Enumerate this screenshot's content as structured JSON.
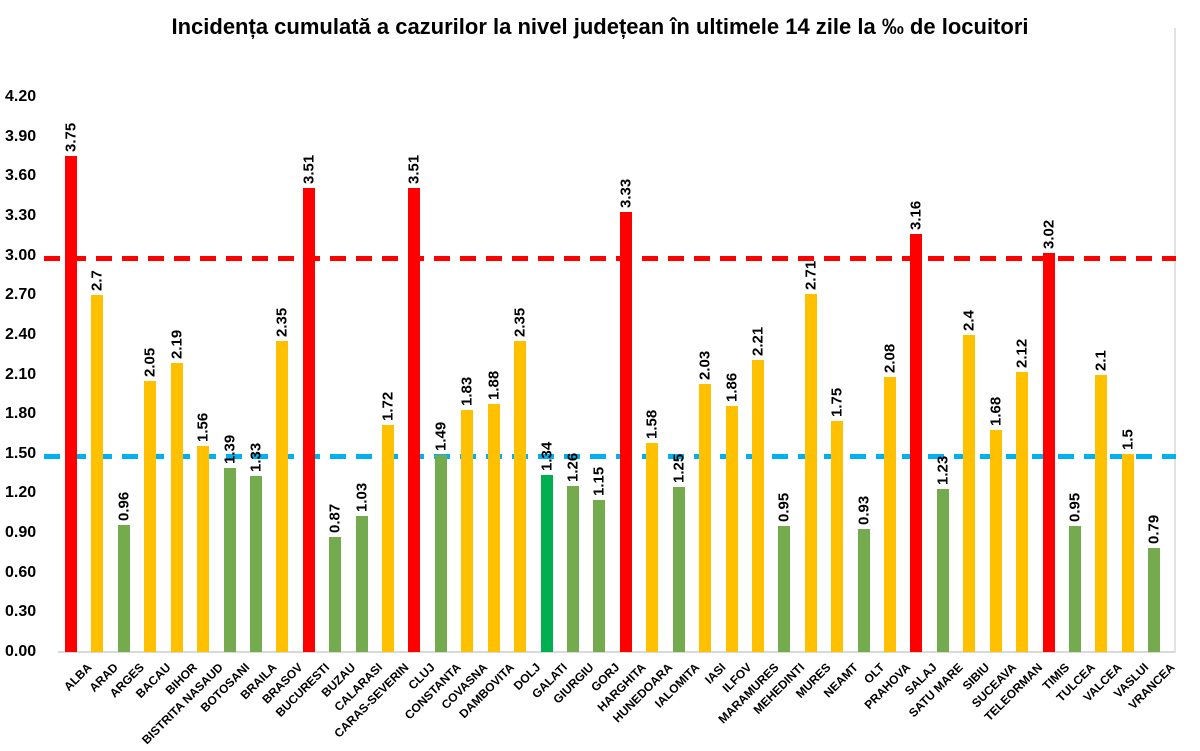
{
  "chart_data": {
    "type": "bar",
    "title": "Incidența cumulată a cazurilor la nivel județean în ultimele 14 zile la ‰ de locuitori",
    "xlabel": "",
    "ylabel": "",
    "ylim": [
      0,
      4.2
    ],
    "ytick_step": 0.3,
    "yticks": [
      "0.00",
      "0.30",
      "0.60",
      "0.90",
      "1.20",
      "1.50",
      "1.80",
      "2.10",
      "2.40",
      "2.70",
      "3.00",
      "3.30",
      "3.60",
      "3.90",
      "4.20"
    ],
    "grid": false,
    "legend": "none",
    "axis_color": "#d9d9d9",
    "categories": [
      "ALBA",
      "ARAD",
      "ARGES",
      "BACAU",
      "BIHOR",
      "BISTRITA NASAUD",
      "BOTOSANI",
      "BRAILA",
      "BRASOV",
      "BUCURESTI",
      "BUZAU",
      "CALARASI",
      "CARAS-SEVERIN",
      "CLUJ",
      "CONSTANTA",
      "COVASNA",
      "DAMBOVITA",
      "DOLJ",
      "GALATI",
      "GIURGIU",
      "GORJ",
      "HARGHITA",
      "HUNEDOARA",
      "IALOMITA",
      "IASI",
      "ILFOV",
      "MARAMURES",
      "MEHEDINTI",
      "MURES",
      "NEAMT",
      "OLT",
      "PRAHOVA",
      "SALAJ",
      "SATU MARE",
      "SIBIU",
      "SUCEAVA",
      "TELEORMAN",
      "TIMIS",
      "TULCEA",
      "VALCEA",
      "VASLUI",
      "VRANCEA"
    ],
    "values": [
      3.75,
      2.7,
      0.96,
      2.05,
      2.19,
      1.56,
      1.39,
      1.33,
      2.35,
      3.51,
      0.87,
      1.03,
      1.72,
      3.51,
      1.49,
      1.83,
      1.88,
      2.35,
      1.34,
      1.26,
      1.15,
      3.33,
      1.58,
      1.25,
      2.03,
      1.86,
      2.21,
      0.95,
      2.71,
      1.75,
      0.93,
      2.08,
      3.16,
      1.23,
      2.4,
      1.68,
      2.12,
      3.02,
      0.95,
      2.1,
      1.5,
      0.79
    ],
    "value_labels": [
      "3.75",
      "2.7",
      "0.96",
      "2.05",
      "2.19",
      "1.56",
      "1.39",
      "1.33",
      "2.35",
      "3.51",
      "0.87",
      "1.03",
      "1.72",
      "3.51",
      "1.49",
      "1.83",
      "1.88",
      "2.35",
      "1.34",
      "1.26",
      "1.15",
      "3.33",
      "1.58",
      "1.25",
      "2.03",
      "1.86",
      "2.21",
      "0.95",
      "2.71",
      "1.75",
      "0.93",
      "2.08",
      "3.16",
      "1.23",
      "2.4",
      "1.68",
      "2.12",
      "3.02",
      "0.95",
      "2.1",
      "1.5",
      "0.79"
    ],
    "bar_colors": [
      "red",
      "yellow",
      "green",
      "yellow",
      "yellow",
      "yellow",
      "green",
      "green",
      "yellow",
      "red",
      "green",
      "green",
      "yellow",
      "red",
      "green",
      "yellow",
      "yellow",
      "yellow",
      "bright_green",
      "green",
      "green",
      "red",
      "yellow",
      "green",
      "yellow",
      "yellow",
      "yellow",
      "green",
      "yellow",
      "yellow",
      "green",
      "yellow",
      "red",
      "green",
      "yellow",
      "yellow",
      "yellow",
      "red",
      "green",
      "yellow",
      "yellow",
      "green"
    ],
    "palette": {
      "red": "#ff0000",
      "yellow": "#ffc000",
      "green": "#74ab4f",
      "bright_green": "#00b050"
    },
    "thresholds": [
      {
        "name": "red-threshold",
        "value": 3.0,
        "color": "#ff0000"
      },
      {
        "name": "blue-threshold",
        "value": 1.5,
        "color": "#00b0f0"
      }
    ]
  }
}
